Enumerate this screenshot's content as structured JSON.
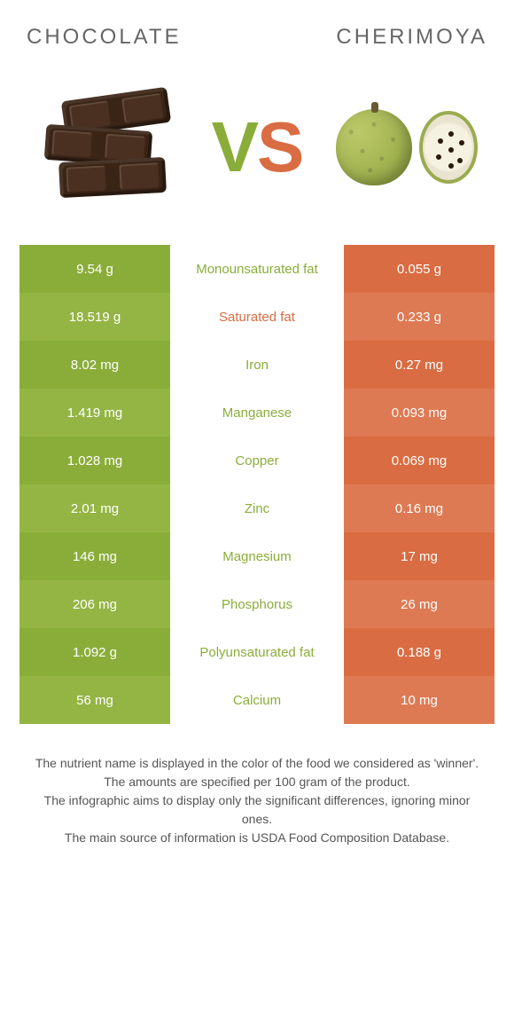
{
  "colors": {
    "left": "#8aad3a",
    "right": "#d96c42",
    "left_alt": "#94b544",
    "right_alt": "#de7a53",
    "mid_text_left": "#8aad3a",
    "mid_text_right": "#d96c42",
    "background": "#ffffff"
  },
  "header": {
    "left_title": "Chocolate",
    "right_title": "Cherimoya"
  },
  "vs": {
    "v": "V",
    "s": "S"
  },
  "comparison": {
    "type": "table",
    "columns": [
      "left_value",
      "nutrient",
      "right_value"
    ],
    "rows": [
      {
        "left": "9.54 g",
        "label": "Monounsaturated fat",
        "right": "0.055 g",
        "winner": "left"
      },
      {
        "left": "18.519 g",
        "label": "Saturated fat",
        "right": "0.233 g",
        "winner": "right"
      },
      {
        "left": "8.02 mg",
        "label": "Iron",
        "right": "0.27 mg",
        "winner": "left"
      },
      {
        "left": "1.419 mg",
        "label": "Manganese",
        "right": "0.093 mg",
        "winner": "left"
      },
      {
        "left": "1.028 mg",
        "label": "Copper",
        "right": "0.069 mg",
        "winner": "left"
      },
      {
        "left": "2.01 mg",
        "label": "Zinc",
        "right": "0.16 mg",
        "winner": "left"
      },
      {
        "left": "146 mg",
        "label": "Magnesium",
        "right": "17 mg",
        "winner": "left"
      },
      {
        "left": "206 mg",
        "label": "Phosphorus",
        "right": "26 mg",
        "winner": "left"
      },
      {
        "left": "1.092 g",
        "label": "Polyunsaturated fat",
        "right": "0.188 g",
        "winner": "left"
      },
      {
        "left": "56 mg",
        "label": "Calcium",
        "right": "10 mg",
        "winner": "left"
      }
    ]
  },
  "footer": {
    "line1": "The nutrient name is displayed in the color of the food we considered as 'winner'.",
    "line2": "The amounts are specified per 100 gram of the product.",
    "line3": "The infographic aims to display only the significant differences, ignoring minor ones.",
    "line4": "The main source of information is USDA Food Composition Database."
  }
}
